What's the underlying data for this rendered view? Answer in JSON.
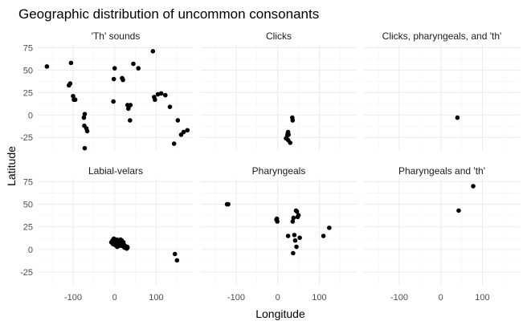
{
  "chart_data": {
    "type": "scatter",
    "title": "Geographic distribution of uncommon consonants",
    "xlabel": "Longitude",
    "ylabel": "Latitude",
    "xlim": [
      -185,
      190
    ],
    "ylim": [
      -40,
      78
    ],
    "xticks": [
      -100,
      0,
      100
    ],
    "xtick_labels": [
      "-100",
      "0",
      "100"
    ],
    "yticks": [
      75,
      50,
      25,
      0,
      -25
    ],
    "ytick_labels": [
      "75",
      "50",
      "25",
      "0",
      "-25"
    ],
    "grid": true,
    "point_color": "#000000",
    "panels": [
      {
        "name": "'Th' sounds",
        "points": [
          [
            -163,
            54
          ],
          [
            -105,
            58
          ],
          [
            -110,
            33
          ],
          [
            -107,
            35
          ],
          [
            -100,
            21
          ],
          [
            -98,
            17
          ],
          [
            -95,
            17
          ],
          [
            -72,
            1
          ],
          [
            -74,
            -3
          ],
          [
            -73,
            -12
          ],
          [
            -68,
            -15
          ],
          [
            -66,
            -18
          ],
          [
            -72,
            -37
          ],
          [
            -2,
            40
          ],
          [
            -3,
            15
          ],
          [
            0,
            52
          ],
          [
            18,
            41
          ],
          [
            20,
            39
          ],
          [
            31,
            11
          ],
          [
            35,
            10
          ],
          [
            33,
            7
          ],
          [
            38,
            11
          ],
          [
            37,
            -6
          ],
          [
            45,
            57
          ],
          [
            57,
            52
          ],
          [
            92,
            71
          ],
          [
            95,
            20
          ],
          [
            97,
            17
          ],
          [
            104,
            23
          ],
          [
            112,
            24
          ],
          [
            122,
            22
          ],
          [
            133,
            9
          ],
          [
            143,
            -32
          ],
          [
            152,
            -6
          ],
          [
            160,
            -22
          ],
          [
            166,
            -19
          ],
          [
            175,
            -17
          ]
        ]
      },
      {
        "name": "Clicks",
        "points": [
          [
            35,
            -3
          ],
          [
            36,
            -6
          ],
          [
            25,
            -19
          ],
          [
            24,
            -21
          ],
          [
            23,
            -23
          ],
          [
            26,
            -22
          ],
          [
            20,
            -26
          ],
          [
            25,
            -28
          ],
          [
            30,
            -31
          ]
        ]
      },
      {
        "name": "Clicks, pharyngeals, and 'th'",
        "points": [
          [
            40,
            -3
          ]
        ]
      },
      {
        "name": "Labial-velars",
        "points": [
          [
            -8,
            8
          ],
          [
            -4,
            6
          ],
          [
            -2,
            12
          ],
          [
            0,
            9
          ],
          [
            2,
            8
          ],
          [
            4,
            6
          ],
          [
            6,
            7
          ],
          [
            7,
            9
          ],
          [
            8,
            5
          ],
          [
            9,
            10
          ],
          [
            10,
            8
          ],
          [
            11,
            4
          ],
          [
            12,
            6
          ],
          [
            13,
            9
          ],
          [
            14,
            7
          ],
          [
            15,
            5
          ],
          [
            16,
            6
          ],
          [
            17,
            10
          ],
          [
            18,
            4
          ],
          [
            19,
            7
          ],
          [
            20,
            5
          ],
          [
            21,
            8
          ],
          [
            22,
            3
          ],
          [
            23,
            5
          ],
          [
            24,
            2
          ],
          [
            25,
            4
          ],
          [
            26,
            3
          ],
          [
            27,
            2
          ],
          [
            28,
            2
          ],
          [
            29,
            1
          ],
          [
            30,
            3
          ],
          [
            31,
            2
          ],
          [
            -5,
            10
          ],
          [
            1,
            5
          ],
          [
            5,
            11
          ],
          [
            9,
            4
          ],
          [
            14,
            11
          ],
          [
            3,
            7
          ],
          [
            -1,
            7
          ],
          [
            6,
            3
          ],
          [
            145,
            -5
          ],
          [
            150,
            -12
          ]
        ]
      },
      {
        "name": "Pharyngeals",
        "points": [
          [
            -122,
            50
          ],
          [
            -119,
            50
          ],
          [
            -1,
            31
          ],
          [
            -2,
            34
          ],
          [
            -3,
            33
          ],
          [
            36,
            31
          ],
          [
            38,
            35
          ],
          [
            40,
            16
          ],
          [
            37,
            -4
          ],
          [
            44,
            43
          ],
          [
            46,
            42
          ],
          [
            48,
            36
          ],
          [
            50,
            38
          ],
          [
            45,
            3
          ],
          [
            53,
            13
          ],
          [
            25,
            15
          ],
          [
            42,
            10
          ],
          [
            110,
            15
          ],
          [
            124,
            24
          ]
        ]
      },
      {
        "name": "Pharyngeals and 'th'",
        "points": [
          [
            78,
            70
          ],
          [
            43,
            43
          ]
        ]
      }
    ]
  }
}
